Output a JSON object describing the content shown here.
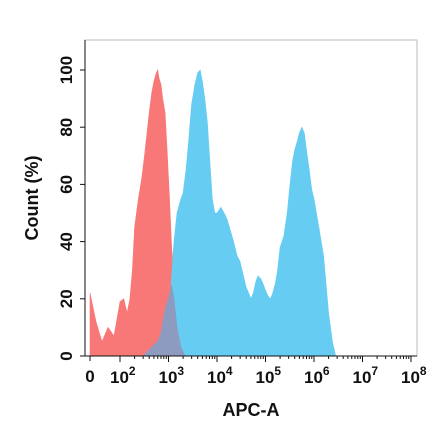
{
  "chart_data": {
    "type": "area",
    "title": "",
    "xlabel": "APC-A",
    "ylabel": "Count  (%)",
    "x_scale": "log",
    "x_zero_tick": "0",
    "x_ticks": [
      {
        "base": "10",
        "exp": "2",
        "value": 100
      },
      {
        "base": "10",
        "exp": "3",
        "value": 1000
      },
      {
        "base": "10",
        "exp": "4",
        "value": 10000
      },
      {
        "base": "10",
        "exp": "5",
        "value": 100000
      },
      {
        "base": "10",
        "exp": "6",
        "value": 1000000
      },
      {
        "base": "10",
        "exp": "7",
        "value": 10000000
      },
      {
        "base": "10",
        "exp": "8",
        "value": 100000000
      }
    ],
    "ylim": [
      0,
      100
    ],
    "y_ticks": [
      "0",
      "20",
      "40",
      "60",
      "80",
      "100"
    ],
    "grid": false,
    "legend": "none",
    "series": [
      {
        "color": "#f87878",
        "points": [
          [
            0,
            22
          ],
          [
            20,
            12
          ],
          [
            40,
            5
          ],
          [
            60,
            10
          ],
          [
            80,
            7
          ],
          [
            100,
            19
          ],
          [
            120,
            20
          ],
          [
            140,
            15
          ],
          [
            160,
            20
          ],
          [
            180,
            30
          ],
          [
            200,
            45
          ],
          [
            240,
            55
          ],
          [
            280,
            62
          ],
          [
            320,
            70
          ],
          [
            360,
            78
          ],
          [
            400,
            85
          ],
          [
            450,
            92
          ],
          [
            500,
            96
          ],
          [
            560,
            99
          ],
          [
            600,
            100
          ],
          [
            640,
            97
          ],
          [
            700,
            95
          ],
          [
            760,
            90
          ],
          [
            850,
            85
          ],
          [
            950,
            70
          ],
          [
            1050,
            55
          ],
          [
            1150,
            40
          ],
          [
            1300,
            25
          ],
          [
            1500,
            10
          ],
          [
            1800,
            3
          ],
          [
            2200,
            0
          ]
        ]
      },
      {
        "color": "#66ccf2",
        "points": [
          [
            300,
            0
          ],
          [
            600,
            5
          ],
          [
            900,
            12
          ],
          [
            1100,
            22
          ],
          [
            1300,
            40
          ],
          [
            1500,
            50
          ],
          [
            1800,
            55
          ],
          [
            2000,
            57
          ],
          [
            2300,
            65
          ],
          [
            2600,
            75
          ],
          [
            3000,
            88
          ],
          [
            3500,
            95
          ],
          [
            4000,
            99
          ],
          [
            4500,
            100
          ],
          [
            5000,
            96
          ],
          [
            5600,
            90
          ],
          [
            6300,
            82
          ],
          [
            7000,
            70
          ],
          [
            8000,
            55
          ],
          [
            9000,
            50
          ],
          [
            10000,
            50
          ],
          [
            12000,
            52
          ],
          [
            14000,
            50
          ],
          [
            16000,
            48
          ],
          [
            18000,
            45
          ],
          [
            22000,
            40
          ],
          [
            26000,
            35
          ],
          [
            30000,
            33
          ],
          [
            35000,
            28
          ],
          [
            40000,
            24
          ],
          [
            45000,
            22
          ],
          [
            50000,
            20
          ],
          [
            56000,
            22
          ],
          [
            63000,
            26
          ],
          [
            70000,
            28
          ],
          [
            80000,
            27
          ],
          [
            90000,
            25
          ],
          [
            100000,
            23
          ],
          [
            112000,
            21
          ],
          [
            126000,
            20
          ],
          [
            141000,
            22
          ],
          [
            158000,
            25
          ],
          [
            178000,
            30
          ],
          [
            200000,
            38
          ],
          [
            240000,
            42
          ],
          [
            280000,
            50
          ],
          [
            320000,
            60
          ],
          [
            360000,
            68
          ],
          [
            400000,
            72
          ],
          [
            450000,
            75
          ],
          [
            500000,
            78
          ],
          [
            560000,
            80
          ],
          [
            630000,
            78
          ],
          [
            700000,
            72
          ],
          [
            800000,
            65
          ],
          [
            900000,
            58
          ],
          [
            1000000,
            55
          ],
          [
            1120000,
            50
          ],
          [
            1260000,
            45
          ],
          [
            1410000,
            40
          ],
          [
            1580000,
            35
          ],
          [
            1780000,
            25
          ],
          [
            2000000,
            15
          ],
          [
            2400000,
            5
          ],
          [
            2800000,
            0
          ]
        ]
      },
      {
        "color": "#8e9bc0",
        "points": [
          [
            300,
            0
          ],
          [
            400,
            2
          ],
          [
            500,
            4
          ],
          [
            600,
            5
          ],
          [
            700,
            8
          ],
          [
            800,
            14
          ],
          [
            900,
            18
          ],
          [
            1000,
            20
          ],
          [
            1150,
            25
          ],
          [
            1300,
            20
          ],
          [
            1500,
            10
          ],
          [
            1800,
            3
          ],
          [
            2200,
            0
          ]
        ]
      }
    ]
  }
}
